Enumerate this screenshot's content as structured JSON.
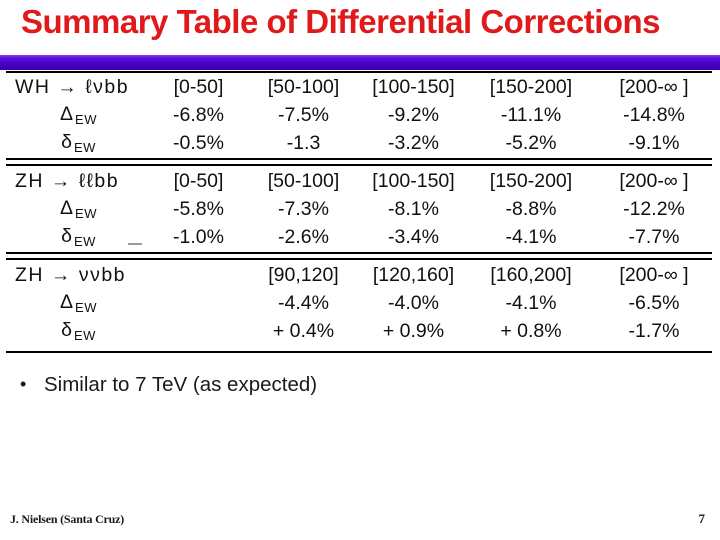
{
  "slide": {
    "title": "Summary Table of Differential Corrections",
    "bullet_marker": "•",
    "bullet": "Similar to 7 TeV (as expected)",
    "footer_left": "J. Nielsen (Santa Cruz)",
    "page_number": "7",
    "colors": {
      "title_red": "#e01a1a",
      "divider_purple": "#4a00c8",
      "text": "#111111"
    }
  },
  "table": {
    "blocks": [
      {
        "rows": [
          {
            "kind": "header",
            "label": "WH → ℓνbb",
            "cells": [
              "[0-50]",
              "[50-100]",
              "[100-150]",
              "[150-200]",
              "[200-∞ ]"
            ]
          },
          {
            "kind": "delta",
            "label_main": "Δ",
            "label_sub": "EW",
            "cells": [
              "-6.8%",
              "-7.5%",
              "-9.2%",
              "-11.1%",
              "-14.8%"
            ]
          },
          {
            "kind": "delta",
            "label_main": "δ",
            "label_sub": "EW",
            "cells": [
              "-0.5%",
              "-1.3",
              "-3.2%",
              "-5.2%",
              "-9.1%"
            ]
          }
        ]
      },
      {
        "rows": [
          {
            "kind": "header",
            "label": "ZH → ℓℓbb",
            "cells": [
              "[0-50]",
              "[50-100]",
              "[100-150]",
              "[150-200]",
              "[200-∞ ]"
            ]
          },
          {
            "kind": "delta",
            "label_main": "Δ",
            "label_sub": "EW",
            "cells": [
              "-5.8%",
              "-7.3%",
              "-8.1%",
              "-8.8%",
              "-12.2%"
            ]
          },
          {
            "kind": "delta",
            "label_main": "δ",
            "label_sub": "EW",
            "cells": [
              "-1.0%",
              "-2.6%",
              "-3.4%",
              "-4.1%",
              "-7.7%"
            ]
          }
        ]
      },
      {
        "rows": [
          {
            "kind": "header",
            "label": "ZH → ννbb",
            "cells": [
              "",
              "[90,120]",
              "[120,160]",
              "[160,200]",
              "[200-∞ ]"
            ]
          },
          {
            "kind": "delta",
            "label_main": "Δ",
            "label_sub": "EW",
            "cells": [
              "",
              "-4.4%",
              "-4.0%",
              "-4.1%",
              "-6.5%"
            ]
          },
          {
            "kind": "delta",
            "label_main": "δ",
            "label_sub": "EW",
            "cells": [
              "",
              "+ 0.4%",
              "+ 0.9%",
              "+ 0.8%",
              "-1.7%"
            ]
          }
        ]
      }
    ]
  }
}
